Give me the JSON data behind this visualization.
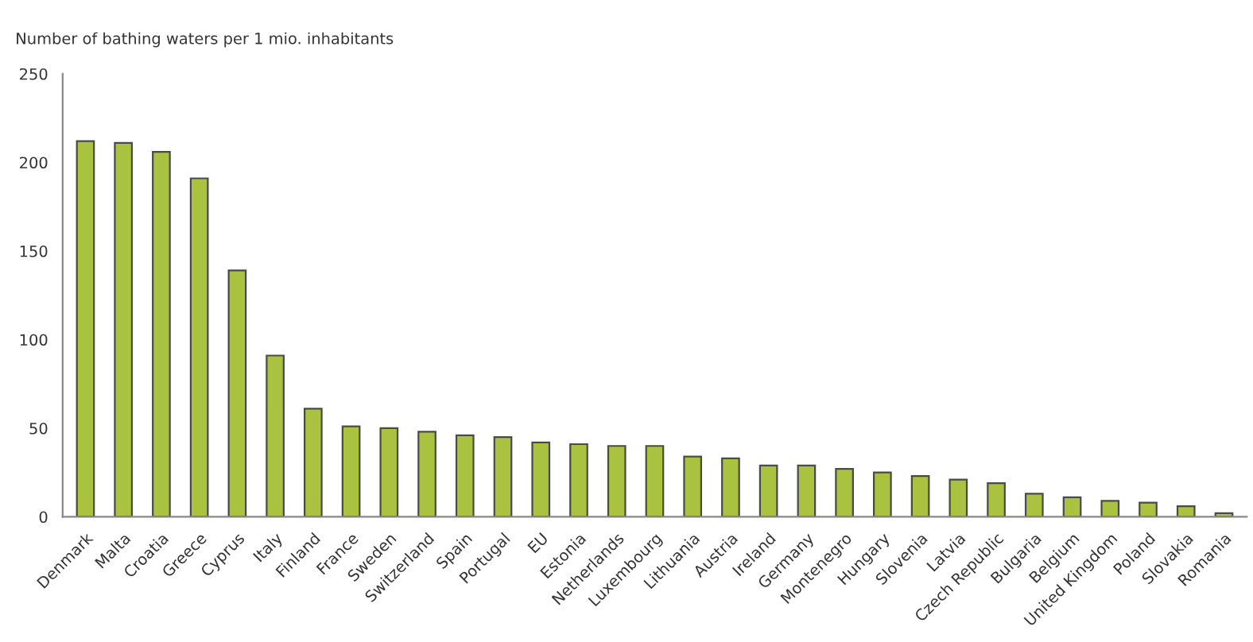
{
  "chart_data": {
    "type": "bar",
    "ylabel": "Number of bathing waters per 1 mio. inhabitants",
    "categories": [
      "Denmark",
      "Malta",
      "Croatia",
      "Greece",
      "Cyprus",
      "Italy",
      "Finland",
      "France",
      "Sweden",
      "Switzerland",
      "Spain",
      "Portugal",
      "EU",
      "Estonia",
      "Netherlands",
      "Luxembourg",
      "Lithuania",
      "Austria",
      "Ireland",
      "Germany",
      "Montenegro",
      "Hungary",
      "Slovenia",
      "Latvia",
      "Czech Republic",
      "Bulgaria",
      "Belgium",
      "United Kingdom",
      "Poland",
      "Slovakia",
      "Romania"
    ],
    "values": [
      212,
      211,
      206,
      191,
      139,
      91,
      61,
      51,
      50,
      48,
      46,
      45,
      42,
      41,
      40,
      40,
      34,
      33,
      29,
      29,
      27,
      25,
      23,
      21,
      19,
      13,
      11,
      9,
      8,
      6,
      2
    ],
    "color": "#a9c23f",
    "ylim": [
      0,
      250
    ],
    "yticks": [
      0,
      50,
      100,
      150,
      200,
      250
    ],
    "grid": false
  }
}
